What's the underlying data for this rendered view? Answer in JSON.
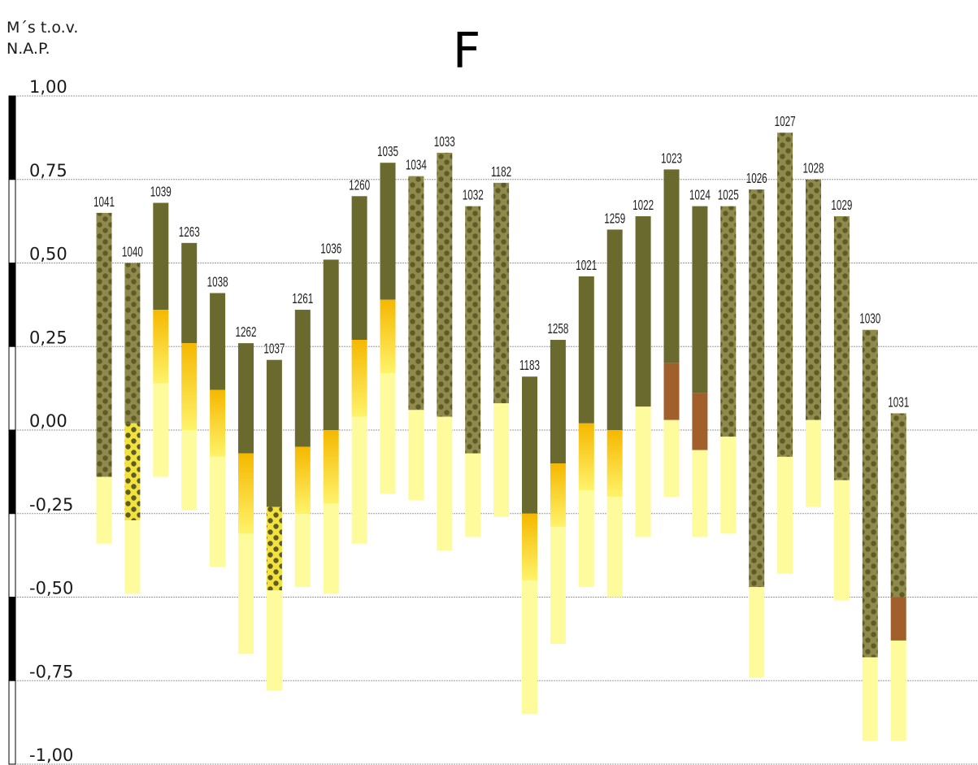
{
  "chart_data": {
    "type": "bar",
    "title": "F",
    "ylabel_lines": [
      "M´s  t.o.v.",
      "N.A.P."
    ],
    "ylim": [
      -1.0,
      1.0
    ],
    "yticks": [
      1.0,
      0.75,
      0.5,
      0.25,
      0.0,
      -0.25,
      -0.5,
      -0.75,
      -1.0
    ],
    "ytick_labels": [
      "1,00",
      "0,75",
      "0,50",
      "0,25",
      "0,00",
      "-0,25",
      "-0,50",
      "-0,75",
      "-1,00"
    ],
    "grid": true,
    "colors": {
      "dark_olive": "#6b6a2e",
      "dotted_bg": "#8f8a4c",
      "dot": "#5d5b26",
      "yellow_dotted_bg": "#f3e23c",
      "orange_start": "#f5b800",
      "yellow_end": "#fff36a",
      "light_yellow": "#fdfb9c",
      "brown": "#a15f2c",
      "grid": "#9a9a9a"
    },
    "bars": [
      {
        "label": "1041",
        "segments": [
          {
            "from": 0.65,
            "to": -0.14,
            "style": "dotted"
          },
          {
            "from": -0.14,
            "to": -0.34,
            "style": "light"
          }
        ]
      },
      {
        "label": "1040",
        "segments": [
          {
            "from": 0.5,
            "to": 0.02,
            "style": "dotted"
          },
          {
            "from": 0.02,
            "to": -0.27,
            "style": "yellow_dotted"
          },
          {
            "from": -0.27,
            "to": -0.49,
            "style": "light"
          }
        ]
      },
      {
        "label": "1039",
        "segments": [
          {
            "from": 0.68,
            "to": 0.36,
            "style": "dark"
          },
          {
            "from": 0.36,
            "to": 0.14,
            "style": "gradient"
          },
          {
            "from": 0.14,
            "to": -0.14,
            "style": "light"
          }
        ]
      },
      {
        "label": "1263",
        "segments": [
          {
            "from": 0.56,
            "to": 0.26,
            "style": "dark"
          },
          {
            "from": 0.26,
            "to": 0.0,
            "style": "gradient"
          },
          {
            "from": 0.0,
            "to": -0.24,
            "style": "light"
          }
        ]
      },
      {
        "label": "1038",
        "segments": [
          {
            "from": 0.41,
            "to": 0.12,
            "style": "dark"
          },
          {
            "from": 0.12,
            "to": -0.08,
            "style": "gradient"
          },
          {
            "from": -0.08,
            "to": -0.41,
            "style": "light"
          }
        ]
      },
      {
        "label": "1262",
        "segments": [
          {
            "from": 0.26,
            "to": -0.07,
            "style": "dark"
          },
          {
            "from": -0.07,
            "to": -0.31,
            "style": "gradient"
          },
          {
            "from": -0.31,
            "to": -0.67,
            "style": "light"
          }
        ]
      },
      {
        "label": "1037",
        "segments": [
          {
            "from": 0.21,
            "to": -0.23,
            "style": "dark"
          },
          {
            "from": -0.23,
            "to": -0.48,
            "style": "yellow_dotted"
          },
          {
            "from": -0.48,
            "to": -0.78,
            "style": "light"
          }
        ]
      },
      {
        "label": "1261",
        "segments": [
          {
            "from": 0.36,
            "to": -0.05,
            "style": "dark"
          },
          {
            "from": -0.05,
            "to": -0.25,
            "style": "gradient"
          },
          {
            "from": -0.25,
            "to": -0.47,
            "style": "light"
          }
        ]
      },
      {
        "label": "1036",
        "segments": [
          {
            "from": 0.51,
            "to": 0.0,
            "style": "dark"
          },
          {
            "from": 0.0,
            "to": -0.22,
            "style": "gradient"
          },
          {
            "from": -0.22,
            "to": -0.49,
            "style": "light"
          }
        ]
      },
      {
        "label": "1260",
        "segments": [
          {
            "from": 0.7,
            "to": 0.27,
            "style": "dark"
          },
          {
            "from": 0.27,
            "to": 0.04,
            "style": "gradient"
          },
          {
            "from": 0.04,
            "to": -0.34,
            "style": "light"
          }
        ]
      },
      {
        "label": "1035",
        "segments": [
          {
            "from": 0.8,
            "to": 0.39,
            "style": "dark"
          },
          {
            "from": 0.39,
            "to": 0.17,
            "style": "gradient"
          },
          {
            "from": 0.17,
            "to": -0.19,
            "style": "light"
          }
        ]
      },
      {
        "label": "1034",
        "segments": [
          {
            "from": 0.76,
            "to": 0.06,
            "style": "dotted"
          },
          {
            "from": 0.06,
            "to": -0.21,
            "style": "light"
          }
        ]
      },
      {
        "label": "1033",
        "segments": [
          {
            "from": 0.83,
            "to": 0.04,
            "style": "dotted"
          },
          {
            "from": 0.04,
            "to": -0.36,
            "style": "light"
          }
        ]
      },
      {
        "label": "1032",
        "segments": [
          {
            "from": 0.67,
            "to": -0.07,
            "style": "dotted"
          },
          {
            "from": -0.07,
            "to": -0.32,
            "style": "light"
          }
        ]
      },
      {
        "label": "1182",
        "segments": [
          {
            "from": 0.74,
            "to": 0.08,
            "style": "dotted"
          },
          {
            "from": 0.08,
            "to": -0.26,
            "style": "light"
          }
        ]
      },
      {
        "label": "1183",
        "segments": [
          {
            "from": 0.16,
            "to": -0.25,
            "style": "dark"
          },
          {
            "from": -0.25,
            "to": -0.45,
            "style": "gradient"
          },
          {
            "from": -0.45,
            "to": -0.85,
            "style": "light"
          }
        ]
      },
      {
        "label": "1258",
        "segments": [
          {
            "from": 0.27,
            "to": -0.1,
            "style": "dark"
          },
          {
            "from": -0.1,
            "to": -0.29,
            "style": "gradient"
          },
          {
            "from": -0.29,
            "to": -0.64,
            "style": "light"
          }
        ]
      },
      {
        "label": "1021",
        "segments": [
          {
            "from": 0.46,
            "to": 0.02,
            "style": "dark"
          },
          {
            "from": 0.02,
            "to": -0.18,
            "style": "gradient"
          },
          {
            "from": -0.18,
            "to": -0.47,
            "style": "light"
          }
        ]
      },
      {
        "label": "1259",
        "segments": [
          {
            "from": 0.6,
            "to": 0.0,
            "style": "dark"
          },
          {
            "from": 0.0,
            "to": -0.2,
            "style": "gradient"
          },
          {
            "from": -0.2,
            "to": -0.5,
            "style": "light"
          }
        ]
      },
      {
        "label": "1022",
        "segments": [
          {
            "from": 0.64,
            "to": 0.07,
            "style": "dark"
          },
          {
            "from": 0.07,
            "to": -0.32,
            "style": "light"
          }
        ]
      },
      {
        "label": "1023",
        "segments": [
          {
            "from": 0.78,
            "to": 0.2,
            "style": "dark"
          },
          {
            "from": 0.2,
            "to": 0.03,
            "style": "brown"
          },
          {
            "from": 0.03,
            "to": -0.2,
            "style": "light"
          }
        ]
      },
      {
        "label": "1024",
        "segments": [
          {
            "from": 0.67,
            "to": 0.11,
            "style": "dark"
          },
          {
            "from": 0.11,
            "to": -0.06,
            "style": "brown"
          },
          {
            "from": -0.06,
            "to": -0.32,
            "style": "light"
          }
        ]
      },
      {
        "label": "1025",
        "segments": [
          {
            "from": 0.67,
            "to": -0.02,
            "style": "dotted"
          },
          {
            "from": -0.02,
            "to": -0.31,
            "style": "light"
          }
        ]
      },
      {
        "label": "1026",
        "segments": [
          {
            "from": 0.72,
            "to": -0.47,
            "style": "dotted"
          },
          {
            "from": -0.47,
            "to": -0.74,
            "style": "light"
          }
        ]
      },
      {
        "label": "1027",
        "segments": [
          {
            "from": 0.89,
            "to": -0.08,
            "style": "dotted"
          },
          {
            "from": -0.08,
            "to": -0.43,
            "style": "light"
          }
        ]
      },
      {
        "label": "1028",
        "segments": [
          {
            "from": 0.75,
            "to": 0.03,
            "style": "dotted"
          },
          {
            "from": 0.03,
            "to": -0.23,
            "style": "light"
          }
        ]
      },
      {
        "label": "1029",
        "segments": [
          {
            "from": 0.64,
            "to": -0.15,
            "style": "dotted"
          },
          {
            "from": -0.15,
            "to": -0.51,
            "style": "light"
          }
        ]
      },
      {
        "label": "1030",
        "segments": [
          {
            "from": 0.3,
            "to": -0.68,
            "style": "dotted"
          },
          {
            "from": -0.68,
            "to": -0.93,
            "style": "light"
          }
        ]
      },
      {
        "label": "1031",
        "segments": [
          {
            "from": 0.05,
            "to": -0.5,
            "style": "dotted"
          },
          {
            "from": -0.5,
            "to": -0.63,
            "style": "brown"
          },
          {
            "from": -0.63,
            "to": -0.93,
            "style": "light"
          }
        ]
      }
    ]
  }
}
